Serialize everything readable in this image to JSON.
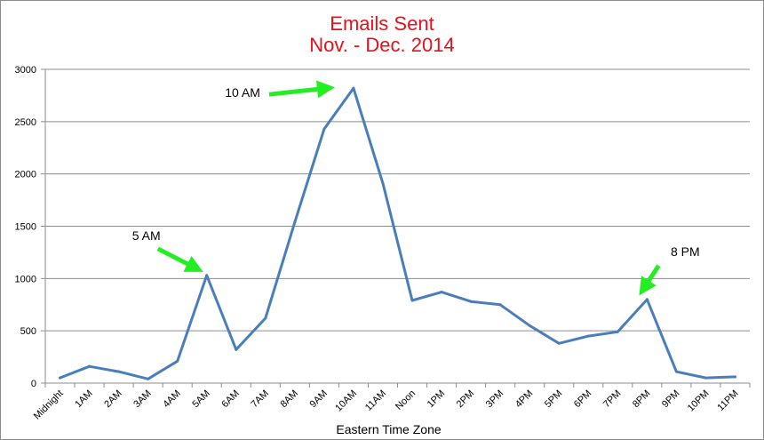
{
  "chart_data": {
    "type": "line",
    "title": "Emails Sent",
    "subtitle": "Nov. - Dec. 2014",
    "xlabel": "Eastern Time Zone",
    "ylabel": "",
    "ylim": [
      0,
      3000
    ],
    "yticks": [
      "0",
      "500",
      "1000",
      "1500",
      "2000",
      "2500",
      "3000"
    ],
    "grid": true,
    "categories": [
      "Midnight",
      "1AM",
      "2AM",
      "3AM",
      "4AM",
      "5AM",
      "6AM",
      "7AM",
      "8AM",
      "9AM",
      "10AM",
      "11AM",
      "Noon",
      "1PM",
      "2PM",
      "3PM",
      "4PM",
      "5PM",
      "6PM",
      "7PM",
      "8PM",
      "9PM",
      "10PM",
      "11PM"
    ],
    "series": [
      {
        "values": [
          50,
          160,
          110,
          40,
          210,
          1030,
          320,
          620,
          1540,
          2430,
          2820,
          1910,
          790,
          870,
          780,
          750,
          550,
          380,
          450,
          490,
          800,
          110,
          50,
          60
        ]
      }
    ],
    "annotations": [
      {
        "text": "5 AM",
        "target_index": 5,
        "target_value": 1030
      },
      {
        "text": "10 AM",
        "target_index": 10,
        "target_value": 2820
      },
      {
        "text": "8 PM",
        "target_index": 20,
        "target_value": 800
      }
    ],
    "colors": {
      "line": "#4a7ebb",
      "grid": "#8c8c8c",
      "arrow": "#22ee22",
      "title": "#e8101a"
    }
  }
}
